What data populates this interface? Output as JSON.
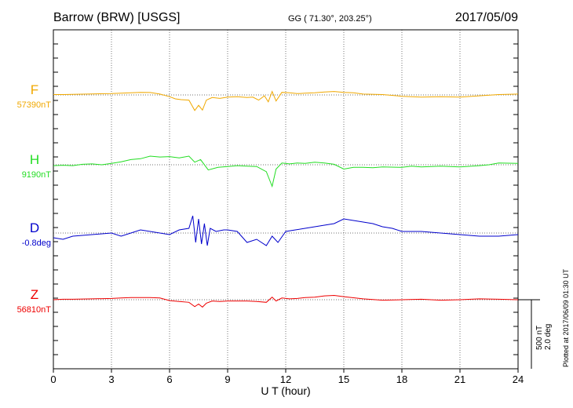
{
  "chart_data": {
    "type": "line",
    "title": "Barrow (BRW)  [USGS]",
    "subtitle": "GG ( 71.30°, 203.25°)",
    "date": "2017/05/09",
    "xlabel": "U T (hour)",
    "xlim": [
      0,
      24
    ],
    "x_ticks": [
      "0",
      "3",
      "6",
      "9",
      "12",
      "15",
      "18",
      "21",
      "24"
    ],
    "grid": true,
    "scale_label": [
      "500 nT",
      "2.0 deg"
    ],
    "plotted_note": "Plotted at 2017/06/09 01:30 UT",
    "series": [
      {
        "name": "F",
        "baseline": "57390nT",
        "color": "#f0a800",
        "x": [
          0,
          0.5,
          1,
          2,
          3,
          4,
          4.5,
          5,
          5.5,
          6,
          6.3,
          6.6,
          7,
          7.3,
          7.5,
          7.7,
          7.9,
          8.2,
          8.6,
          9,
          9.5,
          10,
          10.3,
          10.6,
          10.9,
          11.1,
          11.3,
          11.5,
          11.8,
          12.2,
          12.6,
          13,
          13.5,
          14,
          14.5,
          15,
          15.5,
          16,
          17,
          18,
          19,
          20,
          21,
          22,
          23,
          24
        ],
        "values": [
          5,
          5,
          6,
          12,
          15,
          25,
          30,
          28,
          10,
          -20,
          -45,
          -55,
          -60,
          -180,
          -120,
          -175,
          -60,
          -30,
          -40,
          -25,
          -20,
          -30,
          -25,
          -60,
          -10,
          -80,
          40,
          -70,
          30,
          25,
          15,
          20,
          25,
          35,
          40,
          30,
          25,
          10,
          5,
          -15,
          -25,
          -20,
          -25,
          -10,
          5,
          10
        ]
      },
      {
        "name": "H",
        "baseline": "9190nT",
        "color": "#22dd22",
        "x": [
          0,
          0.5,
          1,
          1.5,
          2,
          2.5,
          3,
          3.5,
          4,
          4.5,
          5,
          5.5,
          6,
          6.5,
          7,
          7.3,
          7.6,
          8,
          8.5,
          9,
          9.5,
          10,
          10.5,
          11,
          11.3,
          11.5,
          11.8,
          12.2,
          12.6,
          13,
          13.5,
          14,
          14.5,
          15,
          15.5,
          16,
          16.5,
          17,
          18,
          18.5,
          19,
          20,
          21,
          22,
          22.5,
          23,
          24
        ],
        "values": [
          -10,
          -5,
          -10,
          5,
          10,
          0,
          15,
          35,
          60,
          70,
          100,
          90,
          95,
          80,
          100,
          30,
          60,
          -60,
          -30,
          -20,
          -10,
          -15,
          -20,
          -80,
          -250,
          -50,
          20,
          10,
          20,
          15,
          30,
          20,
          5,
          -50,
          -30,
          -30,
          -35,
          -25,
          -30,
          -15,
          -25,
          -15,
          -25,
          -10,
          0,
          20,
          15
        ]
      },
      {
        "name": "D",
        "baseline": "-0.8deg",
        "color": "#0000cc",
        "x": [
          0,
          0.5,
          1,
          2,
          3,
          3.5,
          4,
          4.5,
          5,
          5.5,
          6,
          6.5,
          7,
          7.2,
          7.35,
          7.5,
          7.65,
          7.8,
          7.95,
          8.1,
          8.4,
          8.8,
          9,
          9.5,
          10,
          10.5,
          11,
          11.3,
          11.6,
          12,
          12.5,
          13,
          13.5,
          14,
          14.5,
          15,
          15.5,
          16,
          16.5,
          17,
          17.5,
          18,
          19,
          20,
          21,
          22,
          23,
          24
        ],
        "values": [
          -0.15,
          -0.2,
          -0.1,
          -0.05,
          0,
          -0.1,
          0,
          0.1,
          0.05,
          0,
          -0.05,
          0.1,
          0.15,
          0.55,
          -0.3,
          0.45,
          -0.35,
          0.3,
          -0.4,
          0.15,
          0.05,
          0.1,
          0.1,
          0.05,
          -0.3,
          -0.2,
          -0.4,
          -0.1,
          -0.3,
          0.05,
          0.1,
          0.15,
          0.2,
          0.25,
          0.3,
          0.45,
          0.4,
          0.35,
          0.3,
          0.2,
          0.15,
          0.05,
          0.05,
          0,
          -0.05,
          -0.1,
          -0.1,
          -0.05
        ]
      },
      {
        "name": "Z",
        "baseline": "56810nT",
        "color": "#ee0000",
        "x": [
          0,
          0.5,
          1,
          2,
          3,
          3.5,
          4,
          5,
          5.5,
          6,
          6.5,
          7,
          7.3,
          7.5,
          7.7,
          7.9,
          8.2,
          8.6,
          9,
          10,
          10.5,
          11,
          11.3,
          11.5,
          11.8,
          12.2,
          12.6,
          13,
          13.5,
          14,
          14.5,
          15,
          16,
          17,
          18,
          19,
          20,
          21,
          22,
          23,
          24
        ],
        "values": [
          0,
          5,
          5,
          10,
          15,
          20,
          25,
          25,
          20,
          -10,
          -20,
          -30,
          -80,
          -50,
          -85,
          -40,
          -15,
          -20,
          -15,
          -15,
          -20,
          -30,
          30,
          -15,
          20,
          10,
          15,
          25,
          30,
          45,
          50,
          35,
          10,
          -5,
          0,
          5,
          -5,
          0,
          10,
          5,
          0
        ]
      }
    ]
  }
}
